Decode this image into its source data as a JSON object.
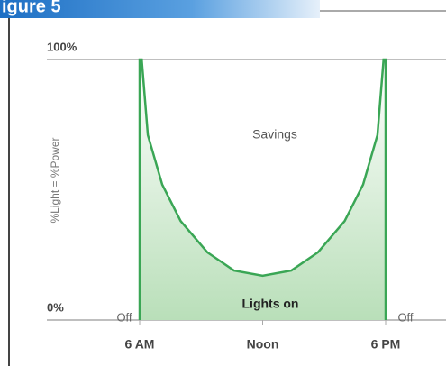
{
  "header": {
    "title": "igure 5"
  },
  "chart_data": {
    "type": "line",
    "y_label": "%Light = %Power",
    "x": [
      6,
      6,
      6.1,
      6.4,
      7.1,
      8,
      9.3,
      10.6,
      12,
      13.4,
      14.7,
      16,
      16.9,
      17.6,
      17.9,
      18,
      18
    ],
    "values": [
      0,
      100,
      100,
      71,
      52,
      38,
      26,
      19,
      17,
      19,
      26,
      38,
      52,
      71,
      100,
      100,
      0
    ],
    "color": "#3aa655",
    "xlim": [
      6,
      18
    ],
    "xticks": [
      {
        "value": 6,
        "label": "6 AM"
      },
      {
        "value": 12,
        "label": "Noon"
      },
      {
        "value": 18,
        "label": "6 PM"
      }
    ],
    "ylim": [
      0,
      100
    ],
    "yticks": [
      {
        "value": 0,
        "label": "0%"
      },
      {
        "value": 100,
        "label": "100%"
      }
    ],
    "annotations": [
      {
        "text": "Savings"
      },
      {
        "text": "Lights on"
      },
      {
        "text": "Off"
      },
      {
        "text": "Off"
      }
    ]
  }
}
